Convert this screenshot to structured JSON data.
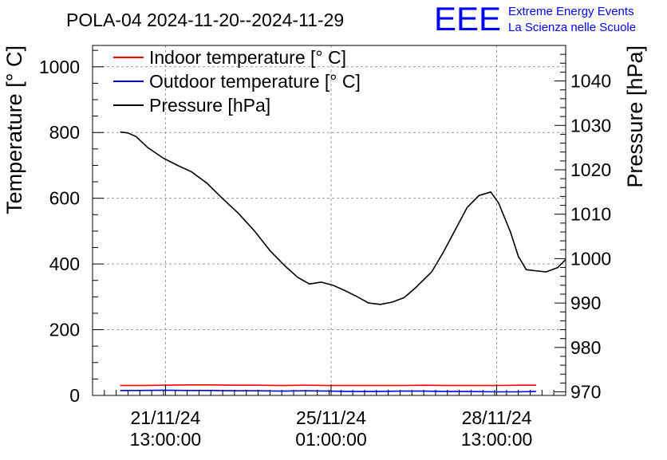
{
  "chart_data": {
    "type": "line",
    "title": "POLA-04 2024-11-20--2024-11-29",
    "ylabel": "Temperature [° C]",
    "y2label": "Pressure [hPa]",
    "ylim": [
      0,
      1065
    ],
    "y2lim": [
      969.2,
      1048
    ],
    "yticks": [
      0,
      200,
      400,
      600,
      800,
      1000
    ],
    "y2ticks": [
      970,
      980,
      990,
      1000,
      1010,
      1020,
      1030,
      1040
    ],
    "x_dates": [
      "2024-11-20",
      "2024-11-29"
    ],
    "xticks": [
      {
        "date": "21/11/24",
        "time": "13:00:00",
        "t": "2024-11-21T13:00"
      },
      {
        "date": "25/11/24",
        "time": "01:00:00",
        "t": "2024-11-25T01:00"
      },
      {
        "date": "28/11/24",
        "time": "13:00:00",
        "t": "2024-11-28T13:00"
      }
    ],
    "grid": true,
    "legend_position": "top-left",
    "legend": [
      {
        "label": "Indoor temperature [° C]",
        "color": "#ff0000"
      },
      {
        "label": "Outdoor temperature [° C]",
        "color": "#0000ff"
      },
      {
        "label": "Pressure [hPa]",
        "color": "#000000"
      }
    ],
    "series": [
      {
        "name": "Indoor temperature [° C]",
        "axis": "left",
        "color": "#ff0000",
        "approx_value": 30,
        "points": [
          [
            "2024-11-20T14:00",
            30
          ],
          [
            "2024-11-21T00:00",
            30
          ],
          [
            "2024-11-21T12:00",
            31
          ],
          [
            "2024-11-22T00:00",
            32
          ],
          [
            "2024-11-22T12:00",
            32
          ],
          [
            "2024-11-23T00:00",
            31
          ],
          [
            "2024-11-23T12:00",
            31
          ],
          [
            "2024-11-24T00:00",
            30
          ],
          [
            "2024-11-24T12:00",
            31
          ],
          [
            "2024-11-25T00:00",
            30
          ],
          [
            "2024-11-25T12:00",
            30
          ],
          [
            "2024-11-26T00:00",
            30
          ],
          [
            "2024-11-26T12:00",
            30
          ],
          [
            "2024-11-27T00:00",
            31
          ],
          [
            "2024-11-27T12:00",
            30
          ],
          [
            "2024-11-28T00:00",
            30
          ],
          [
            "2024-11-28T12:00",
            30
          ],
          [
            "2024-11-29T00:00",
            31
          ],
          [
            "2024-11-29T09:00",
            31
          ]
        ]
      },
      {
        "name": "Outdoor temperature [° C]",
        "axis": "left",
        "color": "#0000ff",
        "approx_value": 14,
        "points": [
          [
            "2024-11-20T14:00",
            15
          ],
          [
            "2024-11-21T00:00",
            15
          ],
          [
            "2024-11-21T12:00",
            16
          ],
          [
            "2024-11-22T00:00",
            15
          ],
          [
            "2024-11-22T12:00",
            15
          ],
          [
            "2024-11-23T00:00",
            14
          ],
          [
            "2024-11-23T12:00",
            14
          ],
          [
            "2024-11-24T00:00",
            13
          ],
          [
            "2024-11-24T12:00",
            14
          ],
          [
            "2024-11-25T00:00",
            13
          ],
          [
            "2024-11-25T12:00",
            12
          ],
          [
            "2024-11-26T00:00",
            12
          ],
          [
            "2024-11-26T12:00",
            13
          ],
          [
            "2024-11-27T00:00",
            13
          ],
          [
            "2024-11-27T12:00",
            12
          ],
          [
            "2024-11-28T00:00",
            12
          ],
          [
            "2024-11-28T12:00",
            11
          ],
          [
            "2024-11-29T00:00",
            11
          ],
          [
            "2024-11-29T09:00",
            12
          ]
        ]
      },
      {
        "name": "Pressure [hPa]",
        "axis": "right",
        "color": "#000000",
        "points": [
          [
            "2024-11-20T14:00",
            1028.5
          ],
          [
            "2024-11-20T18:00",
            1028.3
          ],
          [
            "2024-11-20T22:00",
            1027.5
          ],
          [
            "2024-11-21T04:00",
            1025.0
          ],
          [
            "2024-11-21T12:00",
            1022.6
          ],
          [
            "2024-11-21T20:00",
            1020.8
          ],
          [
            "2024-11-22T02:00",
            1019.6
          ],
          [
            "2024-11-22T10:00",
            1017.0
          ],
          [
            "2024-11-22T18:00",
            1013.5
          ],
          [
            "2024-11-23T02:00",
            1010.2
          ],
          [
            "2024-11-23T10:00",
            1006.3
          ],
          [
            "2024-11-23T18:00",
            1001.8
          ],
          [
            "2024-11-24T02:00",
            998.2
          ],
          [
            "2024-11-24T08:00",
            995.8
          ],
          [
            "2024-11-24T14:00",
            994.3
          ],
          [
            "2024-11-24T20:00",
            994.7
          ],
          [
            "2024-11-25T02:00",
            994.0
          ],
          [
            "2024-11-25T08:00",
            992.8
          ],
          [
            "2024-11-25T14:00",
            991.5
          ],
          [
            "2024-11-25T20:00",
            990.0
          ],
          [
            "2024-11-26T02:00",
            989.7
          ],
          [
            "2024-11-26T08:00",
            990.2
          ],
          [
            "2024-11-26T14:00",
            991.2
          ],
          [
            "2024-11-26T20:00",
            993.5
          ],
          [
            "2024-11-27T04:00",
            997.0
          ],
          [
            "2024-11-27T10:00",
            1001.5
          ],
          [
            "2024-11-27T16:00",
            1006.5
          ],
          [
            "2024-11-27T22:00",
            1011.5
          ],
          [
            "2024-11-28T04:00",
            1014.2
          ],
          [
            "2024-11-28T10:00",
            1015.0
          ],
          [
            "2024-11-28T14:00",
            1012.5
          ],
          [
            "2024-11-28T20:00",
            1006.0
          ],
          [
            "2024-11-29T00:00",
            1000.5
          ],
          [
            "2024-11-29T04:00",
            997.5
          ],
          [
            "2024-11-29T10:00",
            997.2
          ],
          [
            "2024-11-29T14:00",
            997.0
          ],
          [
            "2024-11-29T20:00",
            998.0
          ],
          [
            "2024-11-30T00:00",
            999.8
          ]
        ]
      }
    ]
  },
  "logo": {
    "mark": "EEE",
    "line1": "Extreme Energy Events",
    "line2": "La Scienza nelle Scuole",
    "color": "#0000ff"
  }
}
